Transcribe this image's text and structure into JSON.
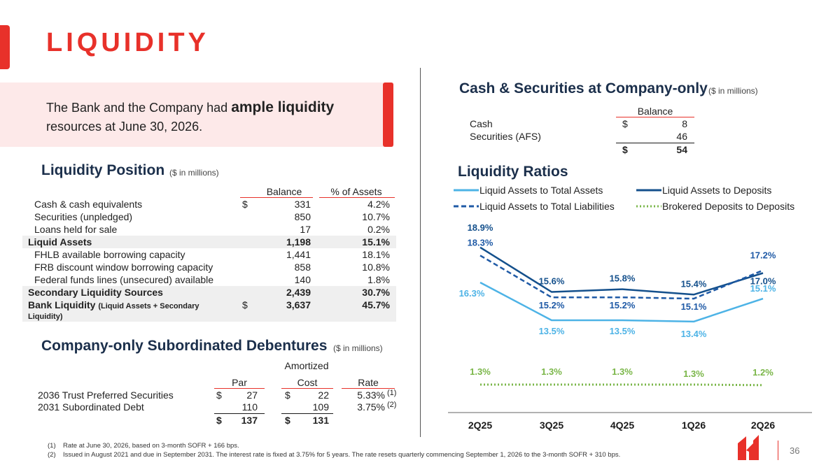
{
  "title": "LIQUIDITY",
  "callout": {
    "prefix": "The Bank and the Company had ",
    "emphasis": "ample liquidity",
    "suffix": "resources at June 30, 2026."
  },
  "liquidity_position": {
    "title": "Liquidity Position",
    "subtitle": "($ in millions)",
    "col_balance": "Balance",
    "col_pct": "% of Assets",
    "rows": [
      {
        "label": "Cash & cash equivalents",
        "dollar": "$",
        "balance": "331",
        "pct": "4.2%"
      },
      {
        "label": "Securities (unpledged)",
        "dollar": "",
        "balance": "850",
        "pct": "10.7%"
      },
      {
        "label": "Loans held for sale",
        "dollar": "",
        "balance": "17",
        "pct": "0.2%"
      },
      {
        "label": "Liquid Assets",
        "dollar": "",
        "balance": "1,198",
        "pct": "15.1%"
      },
      {
        "label": "FHLB available borrowing capacity",
        "dollar": "",
        "balance": "1,441",
        "pct": "18.1%"
      },
      {
        "label": "FRB discount window borrowing capacity",
        "dollar": "",
        "balance": "858",
        "pct": "10.8%"
      },
      {
        "label": "Federal funds lines (unsecured) available",
        "dollar": "",
        "balance": "140",
        "pct": "1.8%"
      },
      {
        "label": "Secondary Liquidity Sources",
        "dollar": "",
        "balance": "2,439",
        "pct": "30.7%"
      },
      {
        "label": "Bank Liquidity",
        "label_note": "(Liquid Assets + Secondary",
        "label_note2": "Liquidity)",
        "dollar": "$",
        "balance": "3,637",
        "pct": "45.7%"
      }
    ]
  },
  "debentures": {
    "title": "Company-only Subordinated Debentures",
    "subtitle": "($ in millions)",
    "col_par": "Par",
    "col_amort_1": "Amortized",
    "col_amort_2": "Cost",
    "col_rate": "Rate",
    "rows": [
      {
        "label": "2036 Trust Preferred Securities",
        "par_dollar": "$",
        "par": "27",
        "cost_dollar": "$",
        "cost": "22",
        "rate": "5.33%",
        "note": "(1)"
      },
      {
        "label": "2031 Subordinated Debt",
        "par_dollar": "",
        "par": "110",
        "cost_dollar": "",
        "cost": "109",
        "rate": "3.75%",
        "note": "(2)"
      }
    ],
    "total": {
      "par_dollar": "$",
      "par": "137",
      "cost_dollar": "$",
      "cost": "131"
    }
  },
  "cash_securities": {
    "title": "Cash & Securities at Company-only",
    "subtitle": "($ in millions)",
    "col_balance": "Balance",
    "rows": [
      {
        "label": "Cash",
        "dollar": "$",
        "value": "8"
      },
      {
        "label": "Securities (AFS)",
        "dollar": "",
        "value": "46"
      }
    ],
    "total": {
      "dollar": "$",
      "value": "54"
    }
  },
  "ratios_title": "Liquidity Ratios",
  "colors": {
    "accent": "#e8312a",
    "navy": "#1b2f4b",
    "light_blue": "#4db3e6",
    "dark_blue": "#14508c",
    "dashed_blue": "#1f5aa6",
    "green": "#7ab648"
  },
  "chart_data": {
    "type": "line",
    "title": "Liquidity Ratios",
    "categories": [
      "2Q25",
      "3Q25",
      "4Q25",
      "1Q26",
      "2Q26"
    ],
    "series": [
      {
        "name": "Liquid Assets to Total Assets",
        "style": "solid",
        "color": "#4db3e6",
        "values": [
          16.3,
          13.5,
          13.5,
          13.4,
          15.1
        ],
        "labels": [
          "16.3%",
          "13.5%",
          "13.5%",
          "13.4%",
          "15.1%"
        ]
      },
      {
        "name": "Liquid Assets to Deposits",
        "style": "solid",
        "color": "#14508c",
        "values": [
          18.9,
          15.6,
          15.8,
          15.4,
          17.0
        ],
        "labels": [
          "18.9%",
          "15.6%",
          "15.8%",
          "15.4%",
          "17.0%"
        ]
      },
      {
        "name": "Liquid Assets to Total Liabilities",
        "style": "dashed",
        "color": "#1f5aa6",
        "values": [
          18.3,
          15.2,
          15.2,
          15.1,
          17.2
        ],
        "labels": [
          "18.3%",
          "15.2%",
          "15.2%",
          "15.1%",
          "17.2%"
        ]
      },
      {
        "name": "Brokered Deposits to Deposits",
        "style": "dotted",
        "color": "#7ab648",
        "values": [
          1.3,
          1.3,
          1.3,
          1.3,
          1.2
        ],
        "labels": [
          "1.3%",
          "1.3%",
          "1.3%",
          "1.3%",
          "1.2%"
        ]
      }
    ],
    "grid": false,
    "legend_position": "top"
  },
  "footnotes": [
    {
      "num": "(1)",
      "text": "Rate at June 30, 2026, based on 3-month SOFR + 166 bps."
    },
    {
      "num": "(2)",
      "text": "Issued in August 2021 and due in September 2031. The interest rate is fixed at 3.75% for 5 years. The rate resets quarterly commencing September 1, 2026 to the 3-month SOFR + 310 bps."
    }
  ],
  "page_number": "36"
}
